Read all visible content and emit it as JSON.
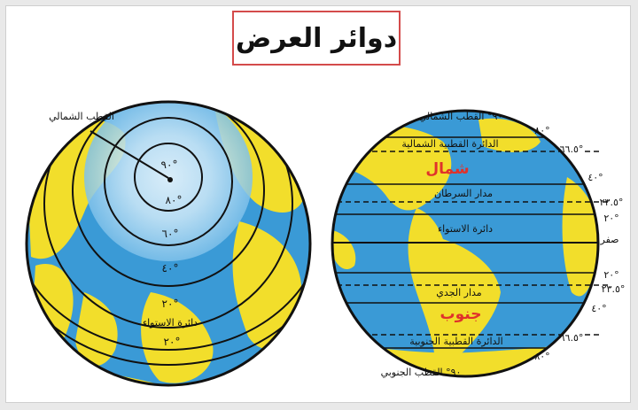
{
  "title": "دوائر العرض",
  "left_globe": {
    "north_pole_label": "القطب الشمالي",
    "latitudes": [
      "٩٠°",
      "٨٠°",
      "٦٠°",
      "٤٠°",
      "٢٠°",
      "٢٠°"
    ],
    "equator_label": "دائرة الاستواء"
  },
  "right_globe": {
    "north_pole_label": "٩٠° القطب الشمالي",
    "south_pole_label": "٩٠° القطب الجنوبي",
    "arctic_circle": "الدائرة القطبية الشمالية",
    "tropic_cancer": "مدار السرطان",
    "equator": "دائرة الاستواء",
    "tropic_capricorn": "مدار الجدي",
    "antarctic_circle": "الدائرة القطبية الجنوبية",
    "north_word": "شمال",
    "south_word": "جنوب",
    "degree_labels": [
      "٨٠°",
      "٦٦.٥°",
      "٤٠°",
      "٢٣.٥°",
      "٢٠°",
      "صفر",
      "٢٠°",
      "٢٣.٥°",
      "٤٠°",
      "٦٦.٥°",
      "٨٠°"
    ]
  },
  "colors": {
    "ocean": "#3a9ad6",
    "land": "#f2de2b",
    "accent_red": "#e0322b"
  }
}
